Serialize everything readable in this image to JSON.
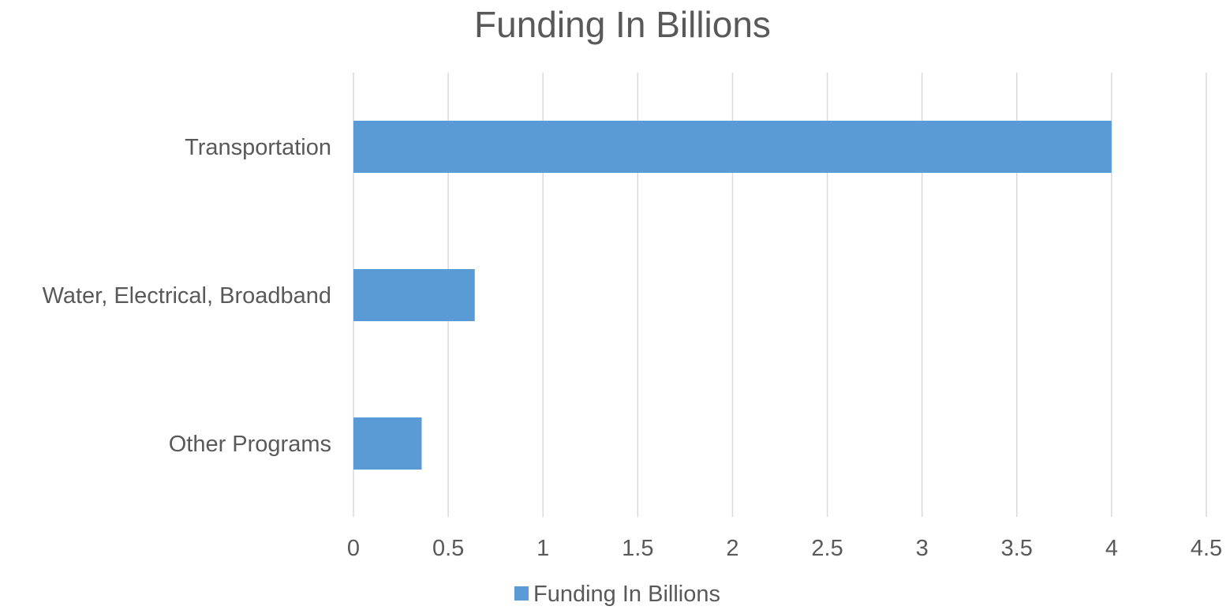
{
  "chart_data": {
    "type": "bar",
    "orientation": "horizontal",
    "title": "Funding In Billions",
    "categories": [
      "Transportation",
      "Water, Electrical, Broadband",
      "Other Programs"
    ],
    "series": [
      {
        "name": "Funding In Billions",
        "values": [
          4.0,
          0.64,
          0.36
        ],
        "color": "#5b9bd5"
      }
    ],
    "xlim": [
      0,
      4.5
    ],
    "xticks": [
      "0",
      "0.5",
      "1",
      "1.5",
      "2",
      "2.5",
      "3",
      "3.5",
      "4",
      "4.5"
    ],
    "grid": true,
    "legend_position": "bottom"
  }
}
